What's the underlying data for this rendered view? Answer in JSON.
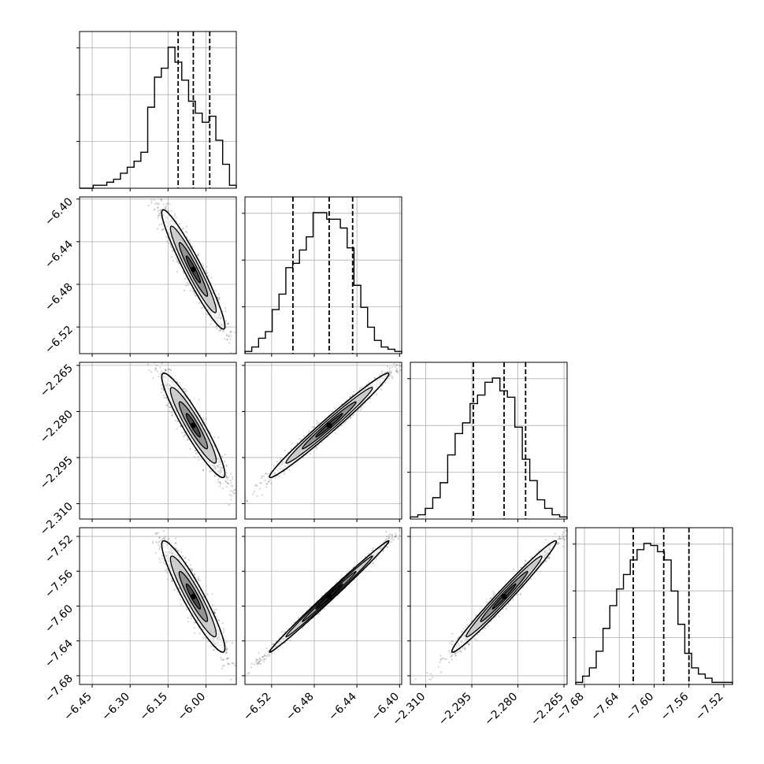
{
  "chart_data": {
    "type": "corner",
    "n_params": 4,
    "axis_ticks": {
      "p0": [
        "−6.45",
        "−6.30",
        "−6.15",
        "−6.00"
      ],
      "p1": [
        "−6.52",
        "−6.48",
        "−6.44",
        "−6.40"
      ],
      "p2": [
        "−2.310",
        "−2.295",
        "−2.280",
        "−2.265"
      ],
      "p3": [
        "−7.68",
        "−7.64",
        "−7.60",
        "−7.56",
        "−7.52"
      ]
    },
    "axis_tick_values": {
      "p0": [
        -6.45,
        -6.3,
        -6.15,
        -6.0
      ],
      "p1": [
        -6.52,
        -6.48,
        -6.44,
        -6.4
      ],
      "p2": [
        -2.31,
        -2.295,
        -2.28,
        -2.265
      ],
      "p3": [
        -7.68,
        -7.64,
        -7.6,
        -7.56,
        -7.52
      ]
    },
    "ranges": [
      [
        -6.5,
        -5.88
      ],
      [
        -6.545,
        -6.398
      ],
      [
        -2.315,
        -2.264
      ],
      [
        -7.69,
        -7.51
      ]
    ],
    "quantiles": [
      [
        -6.11,
        -6.05,
        -5.985
      ],
      [
        -6.5,
        -6.466,
        -6.444
      ],
      [
        -2.2945,
        -2.2845,
        -2.2775
      ],
      [
        -7.624,
        -7.589,
        -7.56
      ]
    ],
    "histograms": [
      [
        0,
        0,
        1,
        1,
        2,
        3,
        5,
        7,
        9,
        12,
        27,
        37,
        40,
        47,
        42,
        36,
        29,
        25,
        22,
        24,
        16,
        8,
        1
      ],
      [
        1,
        3,
        7,
        10,
        20,
        27,
        39,
        41,
        47,
        53,
        64,
        64,
        61,
        61,
        57,
        48,
        31,
        21,
        12,
        6,
        3,
        2,
        1
      ],
      [
        1,
        2,
        5,
        10,
        17,
        30,
        40,
        45,
        54,
        58,
        64,
        66,
        60,
        57,
        43,
        28,
        18,
        9,
        5,
        2,
        1
      ],
      [
        1,
        4,
        8,
        16,
        27,
        38,
        46,
        53,
        60,
        65,
        68,
        67,
        64,
        60,
        45,
        29,
        15,
        8,
        5,
        3,
        1,
        1,
        1
      ]
    ],
    "corr": {
      "1,0": -0.95,
      "2,0": -0.93,
      "3,0": -0.93,
      "2,1": 0.985,
      "3,1": 0.995,
      "3,2": 0.985
    },
    "grid": true
  }
}
